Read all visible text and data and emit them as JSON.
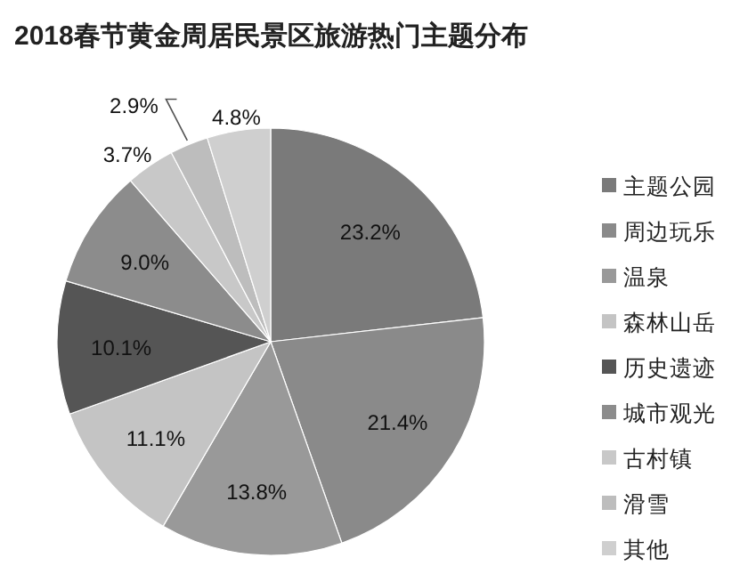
{
  "chart_data": {
    "type": "pie",
    "title": "2018春节黄金周居民景区旅游热门主题分布",
    "categories": [
      "主题公园",
      "周边玩乐",
      "温泉",
      "森林山岳",
      "历史遗迹",
      "城市观光",
      "古村镇",
      "滑雪",
      "其他"
    ],
    "values": [
      23.2,
      21.4,
      13.8,
      11.1,
      10.1,
      9.0,
      3.7,
      2.9,
      4.8
    ],
    "colors": [
      "#7a7a7a",
      "#8a8a8a",
      "#999999",
      "#c4c4c4",
      "#555555",
      "#8c8c8c",
      "#c8c8c8",
      "#bdbdbd",
      "#cfcfcf"
    ],
    "value_labels": [
      "23.2%",
      "21.4%",
      "13.8%",
      "11.1%",
      "10.1%",
      "9.0%",
      "3.7%",
      "2.9%",
      "4.8%"
    ],
    "legend": "right"
  }
}
